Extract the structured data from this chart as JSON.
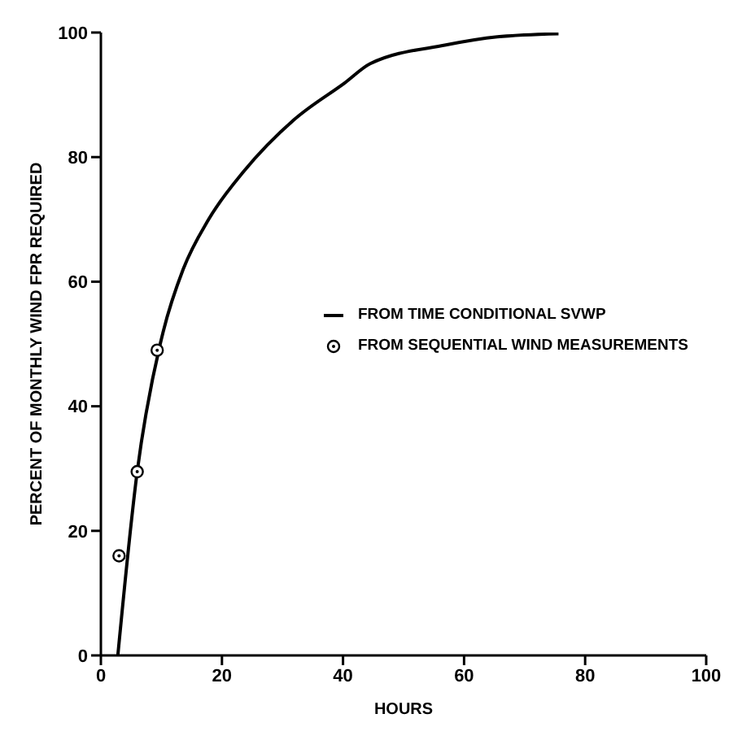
{
  "chart_data": {
    "type": "line",
    "xlabel": "HOURS",
    "ylabel": "PERCENT OF MONTHLY WIND FPR REQUIRED",
    "xlim": [
      0,
      100
    ],
    "xticks": [
      0,
      20,
      40,
      60,
      80,
      100
    ],
    "ylim": [
      0,
      100
    ],
    "yticks": [
      0,
      20,
      40,
      60,
      80,
      100
    ],
    "grid": false,
    "legend": "right",
    "series": [
      {
        "name": "FROM TIME CONDITIONAL SVWP",
        "color": "#000000",
        "marker": "none",
        "line_style": "solid",
        "x": [
          2.8,
          6,
          9.8,
          10.3,
          13.6,
          17.8,
          23.6,
          31.9,
          40.4,
          44.5,
          57,
          65.5,
          75.6
        ],
        "values": [
          0,
          29.5,
          50,
          52,
          62,
          70,
          77.7,
          86,
          92,
          95,
          98,
          99.3,
          99.8
        ]
      },
      {
        "name": "FROM SEQUENTIAL WIND MEASUREMENTS",
        "type": "scatter",
        "color": "#000000",
        "marker": "circle",
        "x": [
          3,
          6,
          9.3
        ],
        "values": [
          16,
          29.5,
          49
        ]
      }
    ]
  }
}
